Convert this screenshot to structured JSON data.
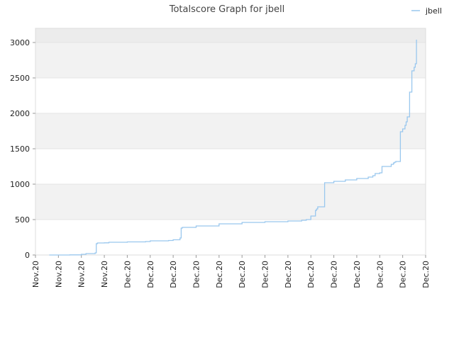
{
  "chart_data": {
    "type": "line",
    "title": "Totalscore Graph for jbell",
    "xlabel": "",
    "ylabel": "",
    "ylim": [
      0,
      3200
    ],
    "yticks": [
      0,
      500,
      1000,
      1500,
      2000,
      2500,
      3000
    ],
    "xtick_labels": [
      "Nov.20",
      "Nov.20",
      "Nov.20",
      "Nov.20",
      "Dec.20",
      "Dec.20",
      "Dec.20",
      "Dec.20",
      "Dec.20",
      "Dec.20",
      "Dec.20",
      "Dec.20",
      "Dec.20",
      "Dec.20",
      "Dec.20",
      "Dec.20",
      "Dec.20",
      "Dec.20"
    ],
    "legend": {
      "position": "top-right"
    },
    "grid": {
      "horizontal_bands": true
    },
    "colors": {
      "series": "#99c7ee",
      "band": "#f2f2f2",
      "band_top": "#ececec",
      "axis": "#dddddd"
    },
    "series": [
      {
        "name": "jbell",
        "x": [
          0.6,
          1.0,
          1.5,
          2.0,
          2.2,
          2.6,
          2.65,
          2.7,
          3.0,
          3.2,
          4.0,
          4.8,
          5.0,
          5.8,
          6.0,
          6.3,
          6.35,
          6.4,
          7.0,
          8.0,
          9.0,
          10.0,
          11.0,
          11.6,
          11.8,
          12.0,
          12.2,
          12.25,
          12.3,
          12.6,
          13.0,
          13.5,
          14.0,
          14.5,
          14.7,
          14.8,
          15.0,
          15.1,
          15.5,
          15.6,
          15.65,
          15.7,
          15.9,
          16.0,
          16.1,
          16.15,
          16.2,
          16.3,
          16.4,
          16.5,
          16.55,
          16.6
        ],
        "y": [
          0,
          0,
          2,
          10,
          20,
          30,
          160,
          170,
          172,
          180,
          185,
          190,
          200,
          205,
          215,
          240,
          380,
          390,
          410,
          440,
          460,
          470,
          480,
          490,
          500,
          550,
          630,
          650,
          680,
          1020,
          1040,
          1060,
          1080,
          1100,
          1120,
          1150,
          1160,
          1250,
          1280,
          1300,
          1310,
          1320,
          1740,
          1780,
          1830,
          1880,
          1950,
          2300,
          2600,
          2650,
          2700,
          3040
        ]
      }
    ]
  }
}
